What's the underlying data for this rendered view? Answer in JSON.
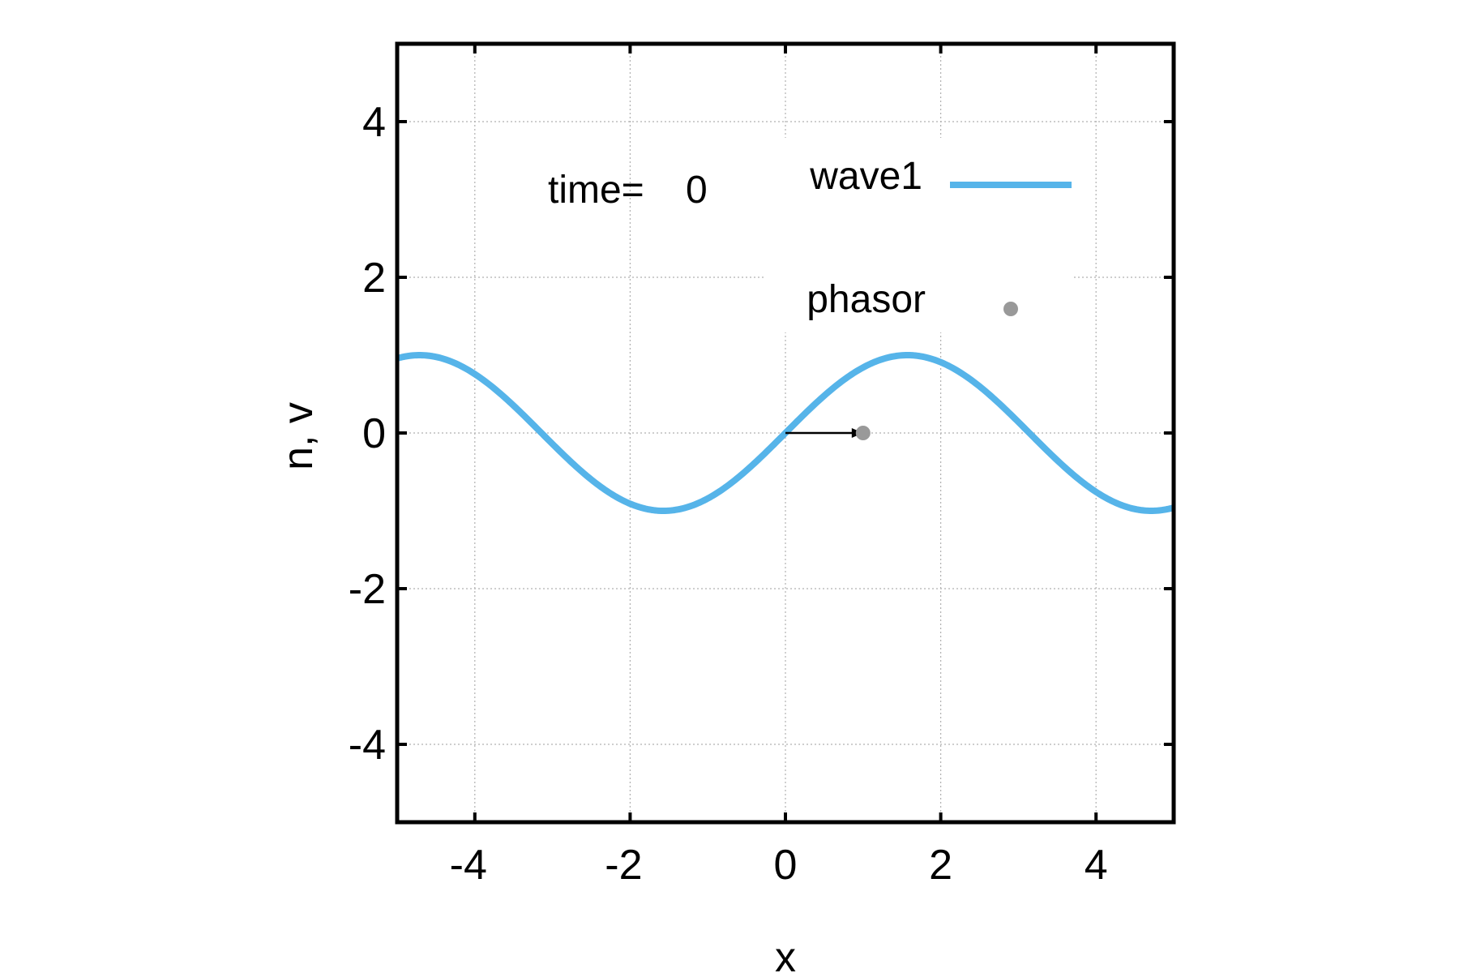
{
  "chart_data": {
    "type": "line",
    "xlabel": "x",
    "ylabel": "n, v",
    "xlim": [
      -5,
      5
    ],
    "ylim": [
      -5,
      5
    ],
    "xticks": [
      -4,
      -2,
      0,
      2,
      4
    ],
    "yticks": [
      -4,
      -2,
      0,
      2,
      4
    ],
    "grid": true,
    "legend_position": "top-right",
    "annotation": {
      "label": "time=",
      "value": "0"
    },
    "series": [
      {
        "name": "wave1",
        "kind": "line",
        "color": "#56b4e9",
        "function": "sin(x)",
        "x_range": [
          -5,
          5
        ]
      },
      {
        "name": "phasor",
        "kind": "point",
        "color": "#999999",
        "points": [
          [
            1,
            0
          ]
        ]
      }
    ],
    "arrow": {
      "from": [
        0,
        0
      ],
      "to": [
        1,
        0
      ],
      "color": "#000000"
    }
  }
}
